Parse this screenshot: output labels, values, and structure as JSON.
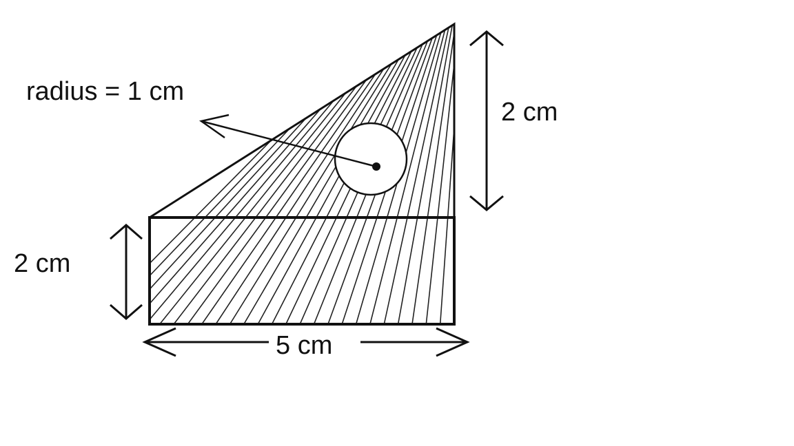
{
  "labels": {
    "radius": "radius = 1 cm",
    "triangle_height": "2 cm",
    "rect_height": "2 cm",
    "base_width": "5 cm"
  },
  "colors": {
    "stroke": "#111111",
    "hatch": "#222222",
    "background": "#ffffff"
  }
}
